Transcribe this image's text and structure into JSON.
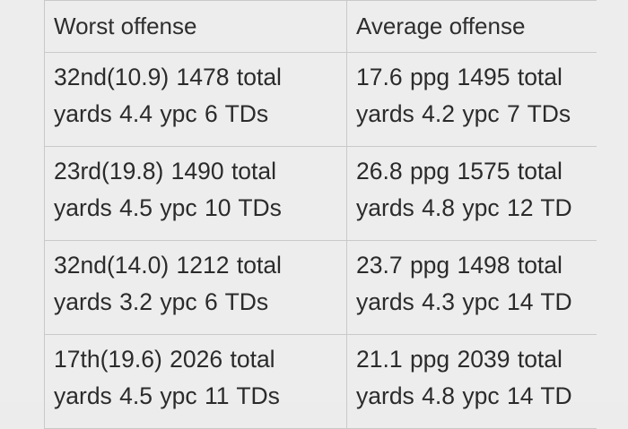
{
  "table": {
    "headers": [
      "Worst offense",
      "Average offense"
    ],
    "rows": [
      [
        "32nd(10.9) 1478 total yards 4.4 ypc 6 TDs",
        "17.6 ppg 1495 total yards 4.2 ypc 7 TDs"
      ],
      [
        "23rd(19.8) 1490 total yards 4.5 ypc 10 TDs",
        "26.8 ppg 1575 total yards 4.8 ypc 12 TD"
      ],
      [
        "32nd(14.0) 1212 total yards 3.2 ypc 6 TDs",
        "23.7 ppg 1498 total yards 4.3 ypc 14 TD"
      ],
      [
        "17th(19.6) 2026 total yards 4.5 ypc 11 TDs",
        "21.1 ppg 2039 total yards 4.8 ypc 14 TD"
      ]
    ]
  },
  "colors": {
    "background": "#ededed",
    "grid_line": "#c9c9c9",
    "text": "#2b2b2b"
  }
}
